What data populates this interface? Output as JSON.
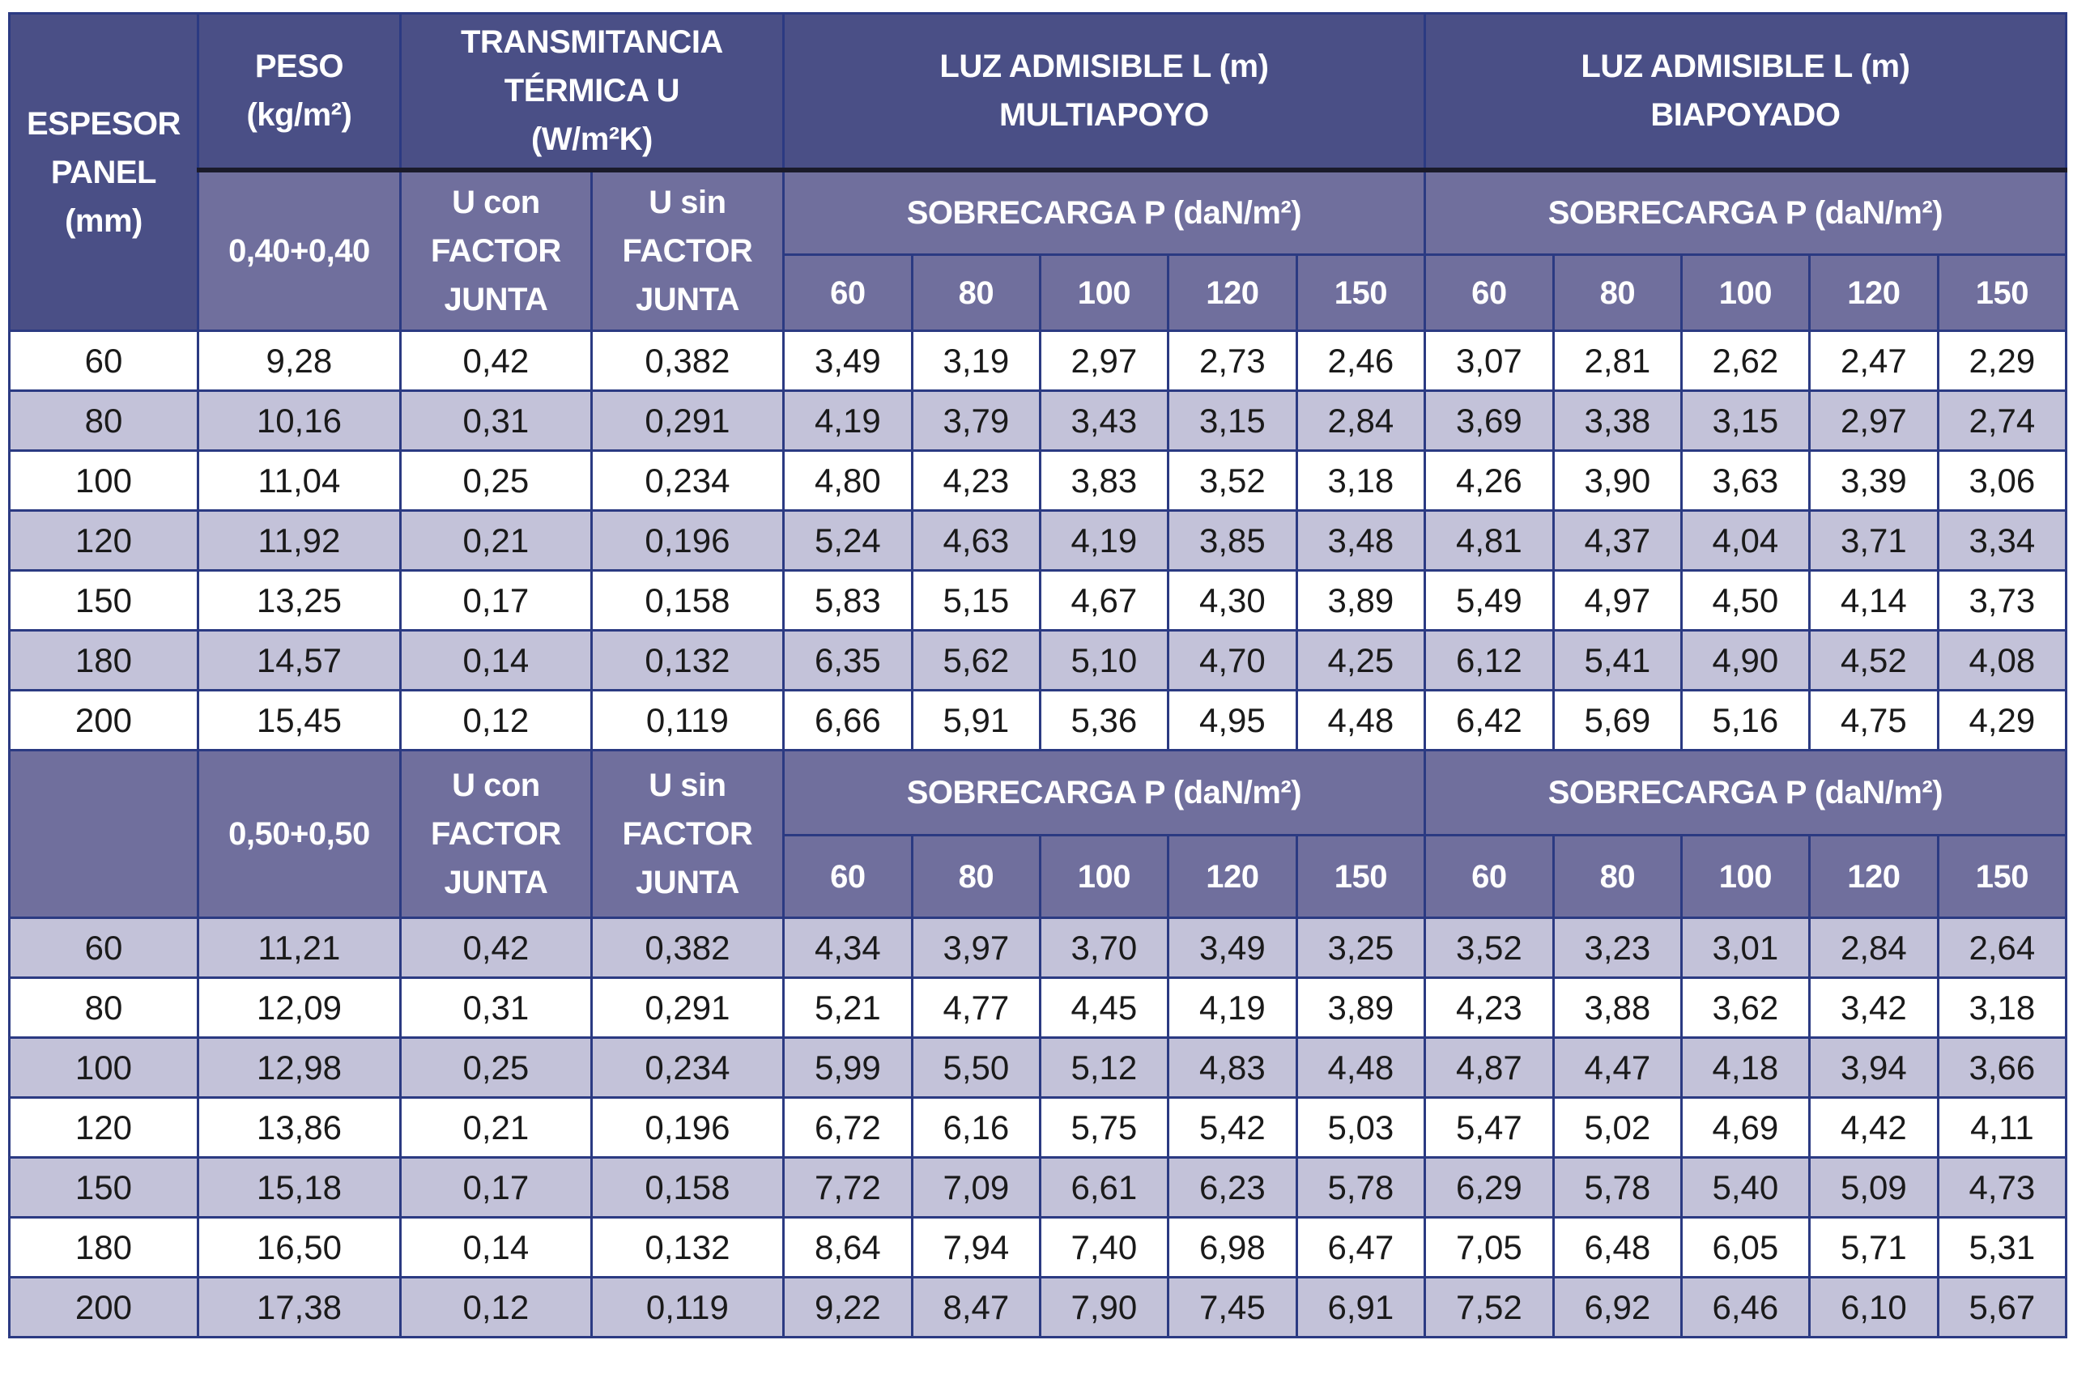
{
  "headers": {
    "espesor": "ESPESOR PANEL (mm)",
    "peso": "PESO (kg/m²)",
    "transmitancia": "TRANSMITANCIA TÉRMICA U (W/m²K)",
    "luz_multiapoyo": "LUZ ADMISIBLE L (m) MULTIAPOYO",
    "luz_biapoyado": "LUZ ADMISIBLE L (m) BIAPOYADO",
    "u_con": "U con FACTOR JUNTA",
    "u_sin": "U sin FACTOR JUNTA",
    "sobrecarga": "SOBRECARGA P (daN/m²)",
    "loads": [
      "60",
      "80",
      "100",
      "120",
      "150"
    ]
  },
  "sections": [
    {
      "thickness_label": "0,40+0,40",
      "rows": [
        [
          "60",
          "9,28",
          "0,42",
          "0,382",
          "3,49",
          "3,19",
          "2,97",
          "2,73",
          "2,46",
          "3,07",
          "2,81",
          "2,62",
          "2,47",
          "2,29"
        ],
        [
          "80",
          "10,16",
          "0,31",
          "0,291",
          "4,19",
          "3,79",
          "3,43",
          "3,15",
          "2,84",
          "3,69",
          "3,38",
          "3,15",
          "2,97",
          "2,74"
        ],
        [
          "100",
          "11,04",
          "0,25",
          "0,234",
          "4,80",
          "4,23",
          "3,83",
          "3,52",
          "3,18",
          "4,26",
          "3,90",
          "3,63",
          "3,39",
          "3,06"
        ],
        [
          "120",
          "11,92",
          "0,21",
          "0,196",
          "5,24",
          "4,63",
          "4,19",
          "3,85",
          "3,48",
          "4,81",
          "4,37",
          "4,04",
          "3,71",
          "3,34"
        ],
        [
          "150",
          "13,25",
          "0,17",
          "0,158",
          "5,83",
          "5,15",
          "4,67",
          "4,30",
          "3,89",
          "5,49",
          "4,97",
          "4,50",
          "4,14",
          "3,73"
        ],
        [
          "180",
          "14,57",
          "0,14",
          "0,132",
          "6,35",
          "5,62",
          "5,10",
          "4,70",
          "4,25",
          "6,12",
          "5,41",
          "4,90",
          "4,52",
          "4,08"
        ],
        [
          "200",
          "15,45",
          "0,12",
          "0,119",
          "6,66",
          "5,91",
          "5,36",
          "4,95",
          "4,48",
          "6,42",
          "5,69",
          "5,16",
          "4,75",
          "4,29"
        ]
      ]
    },
    {
      "thickness_label": "0,50+0,50",
      "rows": [
        [
          "60",
          "11,21",
          "0,42",
          "0,382",
          "4,34",
          "3,97",
          "3,70",
          "3,49",
          "3,25",
          "3,52",
          "3,23",
          "3,01",
          "2,84",
          "2,64"
        ],
        [
          "80",
          "12,09",
          "0,31",
          "0,291",
          "5,21",
          "4,77",
          "4,45",
          "4,19",
          "3,89",
          "4,23",
          "3,88",
          "3,62",
          "3,42",
          "3,18"
        ],
        [
          "100",
          "12,98",
          "0,25",
          "0,234",
          "5,99",
          "5,50",
          "5,12",
          "4,83",
          "4,48",
          "4,87",
          "4,47",
          "4,18",
          "3,94",
          "3,66"
        ],
        [
          "120",
          "13,86",
          "0,21",
          "0,196",
          "6,72",
          "6,16",
          "5,75",
          "5,42",
          "5,03",
          "5,47",
          "5,02",
          "4,69",
          "4,42",
          "4,11"
        ],
        [
          "150",
          "15,18",
          "0,17",
          "0,158",
          "7,72",
          "7,09",
          "6,61",
          "6,23",
          "5,78",
          "6,29",
          "5,78",
          "5,40",
          "5,09",
          "4,73"
        ],
        [
          "180",
          "16,50",
          "0,14",
          "0,132",
          "8,64",
          "7,94",
          "7,40",
          "6,98",
          "6,47",
          "7,05",
          "6,48",
          "6,05",
          "5,71",
          "5,31"
        ],
        [
          "200",
          "17,38",
          "0,12",
          "0,119",
          "9,22",
          "8,47",
          "7,90",
          "7,45",
          "6,91",
          "7,52",
          "6,92",
          "6,46",
          "6,10",
          "5,67"
        ]
      ]
    }
  ],
  "colors": {
    "header_dark": "#4a4f86",
    "header_medium": "#706f9d",
    "row_light": "#c3c2d9",
    "border": "#2b3a82"
  }
}
